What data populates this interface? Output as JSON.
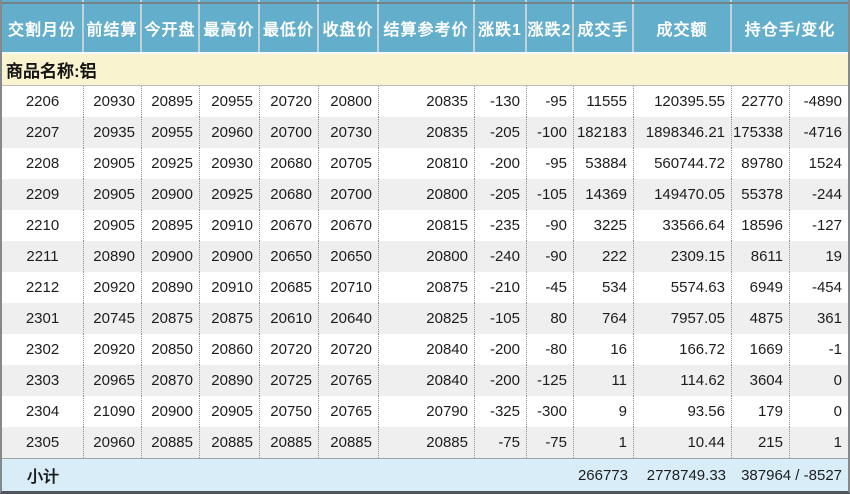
{
  "table": {
    "headers": [
      "交割月份",
      "前结算",
      "今开盘",
      "最高价",
      "最低价",
      "收盘价",
      "结算参考价",
      "涨跌1",
      "涨跌2",
      "成交手",
      "成交额",
      "持仓手/变化"
    ],
    "product_label": "商品名称:铝",
    "rows": [
      [
        "2206",
        "20930",
        "20895",
        "20955",
        "20720",
        "20800",
        "20835",
        "-130",
        "-95",
        "11555",
        "120395.55",
        "22770",
        "-4890"
      ],
      [
        "2207",
        "20935",
        "20955",
        "20960",
        "20700",
        "20730",
        "20835",
        "-205",
        "-100",
        "182183",
        "1898346.21",
        "175338",
        "-4716"
      ],
      [
        "2208",
        "20905",
        "20925",
        "20930",
        "20680",
        "20705",
        "20810",
        "-200",
        "-95",
        "53884",
        "560744.72",
        "89780",
        "1524"
      ],
      [
        "2209",
        "20905",
        "20900",
        "20925",
        "20680",
        "20700",
        "20800",
        "-205",
        "-105",
        "14369",
        "149470.05",
        "55378",
        "-244"
      ],
      [
        "2210",
        "20905",
        "20895",
        "20910",
        "20670",
        "20670",
        "20815",
        "-235",
        "-90",
        "3225",
        "33566.64",
        "18596",
        "-127"
      ],
      [
        "2211",
        "20890",
        "20900",
        "20900",
        "20650",
        "20650",
        "20800",
        "-240",
        "-90",
        "222",
        "2309.15",
        "8611",
        "19"
      ],
      [
        "2212",
        "20920",
        "20890",
        "20910",
        "20685",
        "20710",
        "20875",
        "-210",
        "-45",
        "534",
        "5574.63",
        "6949",
        "-454"
      ],
      [
        "2301",
        "20745",
        "20875",
        "20875",
        "20610",
        "20640",
        "20825",
        "-105",
        "80",
        "764",
        "7957.05",
        "4875",
        "361"
      ],
      [
        "2302",
        "20920",
        "20850",
        "20860",
        "20720",
        "20720",
        "20840",
        "-200",
        "-80",
        "16",
        "166.72",
        "1669",
        "-1"
      ],
      [
        "2303",
        "20965",
        "20870",
        "20890",
        "20725",
        "20765",
        "20840",
        "-200",
        "-125",
        "11",
        "114.62",
        "3604",
        "0"
      ],
      [
        "2304",
        "21090",
        "20900",
        "20905",
        "20750",
        "20765",
        "20790",
        "-325",
        "-300",
        "9",
        "93.56",
        "179",
        "0"
      ],
      [
        "2305",
        "20960",
        "20885",
        "20885",
        "20885",
        "20885",
        "20885",
        "-75",
        "-75",
        "1",
        "10.44",
        "215",
        "1"
      ]
    ],
    "footer": {
      "label": "小计",
      "volume": "266773",
      "turnover": "2778749.33",
      "open_interest_change": "387964 / -8527"
    }
  },
  "colors": {
    "header_bg": "#63aecb",
    "header_text": "#ffffff",
    "product_row_bg": "#faf3d0",
    "row_alt_bg": "#efefef",
    "subtotal_bg": "#d8edf8",
    "body_text": "#1d1d1d"
  }
}
